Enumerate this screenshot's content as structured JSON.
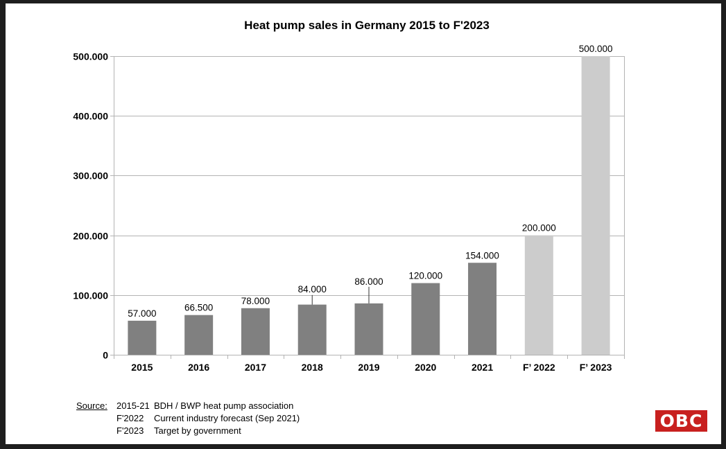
{
  "chart_data": {
    "type": "bar",
    "title": "Heat pump sales in Germany 2015 to F'2023",
    "xlabel": "",
    "ylabel": "",
    "categories": [
      "2015",
      "2016",
      "2017",
      "2018",
      "2019",
      "2020",
      "2021",
      "F’ 2022",
      "F’ 2023"
    ],
    "values": [
      57000,
      66500,
      78000,
      84000,
      86000,
      120000,
      154000,
      200000,
      500000
    ],
    "data_labels": [
      "57.000",
      "66.500",
      "78.000",
      "84.000",
      "86.000",
      "120.000",
      "154.000",
      "200.000",
      "500.000"
    ],
    "bar_types": [
      "actual",
      "actual",
      "actual",
      "actual",
      "actual",
      "actual",
      "actual",
      "forecast",
      "forecast"
    ],
    "ylim": [
      0,
      500000
    ],
    "yticks": [
      0,
      100000,
      200000,
      300000,
      400000,
      500000
    ],
    "ytick_labels": [
      "0",
      "100.000",
      "200.000",
      "300.000",
      "400.000",
      "500.000"
    ],
    "grid": true,
    "legend": "none",
    "colors": {
      "actual": "#808080",
      "forecast": "#cccccc",
      "grid": "#b3b3b3"
    }
  },
  "source": {
    "heading": "Source:",
    "lines": [
      {
        "key": "2015-21",
        "text": "BDH / BWP heat pump association"
      },
      {
        "key": "F'2022",
        "text": "Current industry forecast (Sep 2021)"
      },
      {
        "key": "F'2023",
        "text": "Target by government"
      }
    ]
  },
  "logo": {
    "text": "OBC",
    "color": "#c8201f"
  }
}
